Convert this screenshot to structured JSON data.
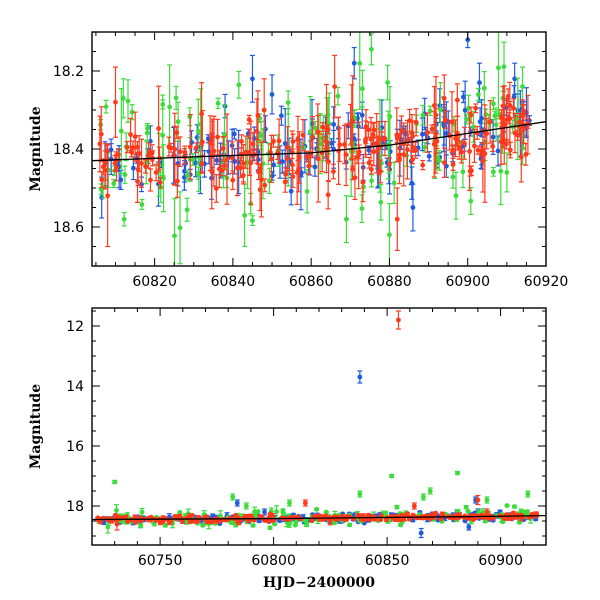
{
  "colors": {
    "blue": "#1f5be0",
    "green": "#3ddc3d",
    "red": "#ff3a1c",
    "trend": "#000000"
  },
  "chart_data": [
    {
      "type": "scatter",
      "panel": "top",
      "title": "",
      "xlabel": "",
      "ylabel": "Magnitude",
      "xlim": [
        60804,
        60920
      ],
      "ylim": [
        18.7,
        18.1
      ],
      "y_inverted": true,
      "xticks": [
        60820,
        60840,
        60860,
        60880,
        60900,
        60920
      ],
      "yticks": [
        18.2,
        18.4,
        18.6
      ],
      "trend": [
        [
          60804,
          18.43
        ],
        [
          60830,
          18.42
        ],
        [
          60860,
          18.41
        ],
        [
          60880,
          18.39
        ],
        [
          60900,
          18.36
        ],
        [
          60920,
          18.33
        ]
      ],
      "series": [
        {
          "color_key": "blue",
          "n": 140,
          "errmax": 0.09,
          "scatter": 0.045,
          "outliers": [
            [
              60838,
              18.29,
              0.03
            ],
            [
              60845,
              18.22,
              0.06
            ],
            [
              60850,
              18.26,
              0.05
            ],
            [
              60871,
              18.18,
              0.04
            ],
            [
              60877,
              18.45,
              0.05
            ],
            [
              60886,
              18.55,
              0.06
            ],
            [
              60889,
              18.31,
              0.04
            ],
            [
              60900,
              18.12,
              0.02
            ],
            [
              60903,
              18.23,
              0.05
            ],
            [
              60912,
              18.22,
              0.04
            ]
          ]
        },
        {
          "color_key": "green",
          "n": 120,
          "errmax": 0.14,
          "scatter": 0.075,
          "outliers": [
            [
              60812,
              18.27,
              0.05
            ],
            [
              60826,
              18.33,
              0.05
            ],
            [
              60843,
              18.57,
              0.08
            ],
            [
              60869,
              18.58,
              0.06
            ],
            [
              60880,
              18.62,
              0.08
            ],
            [
              60893,
              18.3,
              0.07
            ],
            [
              60897,
              18.52,
              0.06
            ],
            [
              60910,
              18.46,
              0.05
            ],
            [
              60914,
              18.24,
              0.05
            ]
          ]
        },
        {
          "color_key": "red",
          "n": 220,
          "errmax": 0.12,
          "scatter": 0.04,
          "outliers": [
            [
              60808,
              18.52,
              0.13
            ],
            [
              60810,
              18.28,
              0.09
            ],
            [
              60832,
              18.31,
              0.08
            ],
            [
              60848,
              18.3,
              0.08
            ],
            [
              60866,
              18.24,
              0.08
            ],
            [
              60882,
              18.58,
              0.08
            ],
            [
              60894,
              18.27,
              0.06
            ],
            [
              60909,
              18.29,
              0.05
            ]
          ]
        }
      ]
    },
    {
      "type": "scatter",
      "panel": "bottom",
      "title": "",
      "xlabel": "HJD−2400000",
      "ylabel": "Magnitude",
      "xlim": [
        60720,
        60920
      ],
      "ylim": [
        19.3,
        11.4
      ],
      "y_inverted": true,
      "xticks": [
        60750,
        60800,
        60850,
        60900
      ],
      "yticks": [
        12,
        14,
        16,
        18
      ],
      "trend": [
        [
          60720,
          18.45
        ],
        [
          60800,
          18.42
        ],
        [
          60880,
          18.36
        ],
        [
          60920,
          18.32
        ]
      ],
      "series": [
        {
          "color_key": "blue",
          "n": 180,
          "errmax": 0.12,
          "scatter": 0.07,
          "outliers": [
            [
              60838,
              13.7,
              0.2
            ],
            [
              60784,
              17.9,
              0.1
            ],
            [
              60796,
              18.2,
              0.1
            ],
            [
              60865,
              18.9,
              0.15
            ],
            [
              60889,
              17.8,
              0.1
            ],
            [
              60890,
              18.2,
              0.1
            ],
            [
              60886,
              18.7,
              0.1
            ]
          ]
        },
        {
          "color_key": "green",
          "n": 160,
          "errmax": 0.2,
          "scatter": 0.14,
          "outliers": [
            [
              60730,
              17.2,
              0.05
            ],
            [
              60727,
              18.7,
              0.2
            ],
            [
              60782,
              17.7,
              0.1
            ],
            [
              60788,
              18.0,
              0.1
            ],
            [
              60807,
              17.9,
              0.1
            ],
            [
              60838,
              17.6,
              0.1
            ],
            [
              60852,
              17.0,
              0.05
            ],
            [
              60866,
              17.7,
              0.1
            ],
            [
              60869,
              17.5,
              0.1
            ],
            [
              60881,
              16.9,
              0.05
            ],
            [
              60894,
              17.8,
              0.1
            ],
            [
              60912,
              17.6,
              0.1
            ]
          ]
        },
        {
          "color_key": "red",
          "n": 280,
          "errmax": 0.12,
          "scatter": 0.05,
          "outliers": [
            [
              60855,
              11.8,
              0.3
            ],
            [
              60731,
              18.6,
              0.2
            ],
            [
              60814,
              17.9,
              0.1
            ],
            [
              60862,
              18.0,
              0.1
            ],
            [
              60890,
              17.8,
              0.15
            ],
            [
              60894,
              18.2,
              0.1
            ]
          ]
        }
      ]
    }
  ]
}
